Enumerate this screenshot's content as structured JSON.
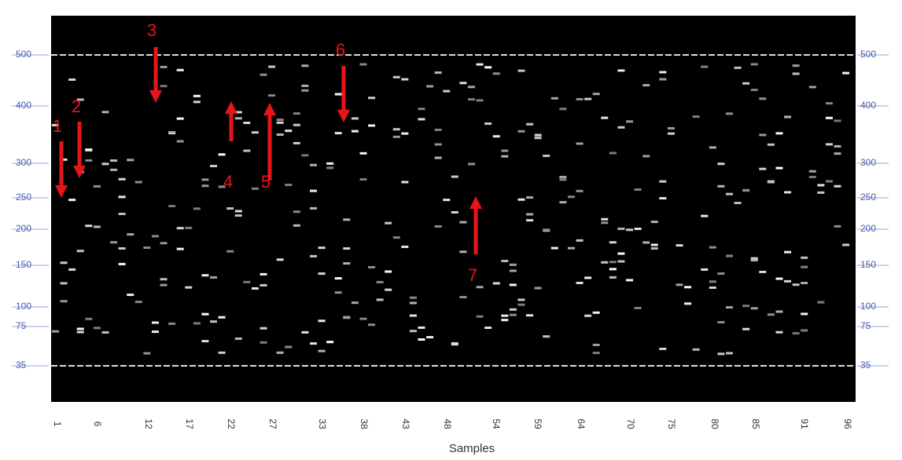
{
  "ladder_labels_left": [
    "500",
    "400",
    "300",
    "250",
    "200",
    "150",
    "100",
    "75",
    "35"
  ],
  "ladder_labels_right": [
    "500",
    "400",
    "300",
    "250",
    "200",
    "150",
    "100",
    "75",
    "35"
  ],
  "sample_labels": [
    "1",
    "6",
    "12",
    "17",
    "22",
    "27",
    "33",
    "38",
    "43",
    "48",
    "54",
    "59",
    "64",
    "70",
    "75",
    "80",
    "85",
    "91",
    "96"
  ],
  "x_axis_title": "Samples",
  "annotations": [
    "1",
    "2",
    "3",
    "4",
    "5",
    "6",
    "7"
  ]
}
